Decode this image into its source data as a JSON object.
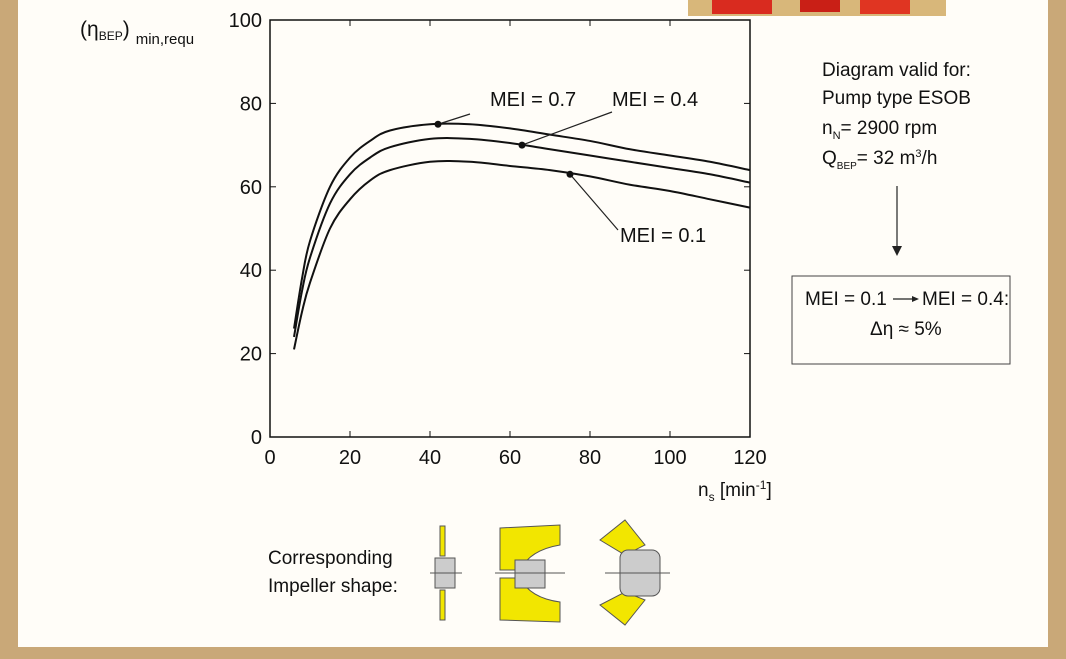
{
  "chart_data": {
    "type": "line",
    "y_label": [
      "(η",
      "BEP",
      ")",
      "min,requ"
    ],
    "x_label": [
      "n",
      "s",
      " [min",
      "-1",
      "]"
    ],
    "x": [
      6,
      8,
      10,
      15,
      20,
      25,
      30,
      40,
      50,
      60,
      70,
      80,
      90,
      100,
      110,
      120
    ],
    "series": [
      {
        "name": "MEI = 0.7",
        "color": "#111111",
        "values": [
          26,
          38,
          47,
          60,
          67,
          71,
          73.5,
          75,
          75,
          74,
          72.5,
          71,
          69,
          67.5,
          66,
          64
        ],
        "marker": [
          42,
          75
        ]
      },
      {
        "name": "MEI = 0.4",
        "color": "#111111",
        "values": [
          24,
          35,
          43,
          56,
          63,
          67,
          69.5,
          71.5,
          71.5,
          70.5,
          69,
          67.5,
          66,
          64.5,
          63,
          61
        ],
        "marker": [
          63,
          70
        ]
      },
      {
        "name": "MEI = 0.1",
        "color": "#111111",
        "values": [
          21,
          30,
          37,
          50,
          57,
          61.5,
          64,
          66,
          66,
          65,
          64,
          62.5,
          60.5,
          59,
          57,
          55
        ],
        "marker": [
          75,
          63
        ]
      }
    ],
    "xlim": [
      0,
      120
    ],
    "ylim": [
      0,
      100
    ],
    "xticks": [
      0,
      20,
      40,
      60,
      80,
      100,
      120
    ],
    "yticks": [
      0,
      20,
      40,
      60,
      80,
      100
    ],
    "notes": {
      "line1": "Diagram valid for:",
      "line2": "Pump type ESOB",
      "speed": [
        "n",
        "N",
        "= 2900 rpm"
      ],
      "flow": [
        "Q",
        "BEP",
        "= 32 m",
        "3",
        "/h"
      ]
    },
    "box": {
      "from": "MEI = 0.1",
      "to": "MEI = 0.4:",
      "result": "Δη ≈ 5%"
    },
    "impeller": [
      "Corresponding",
      "Impeller shape:"
    ]
  }
}
